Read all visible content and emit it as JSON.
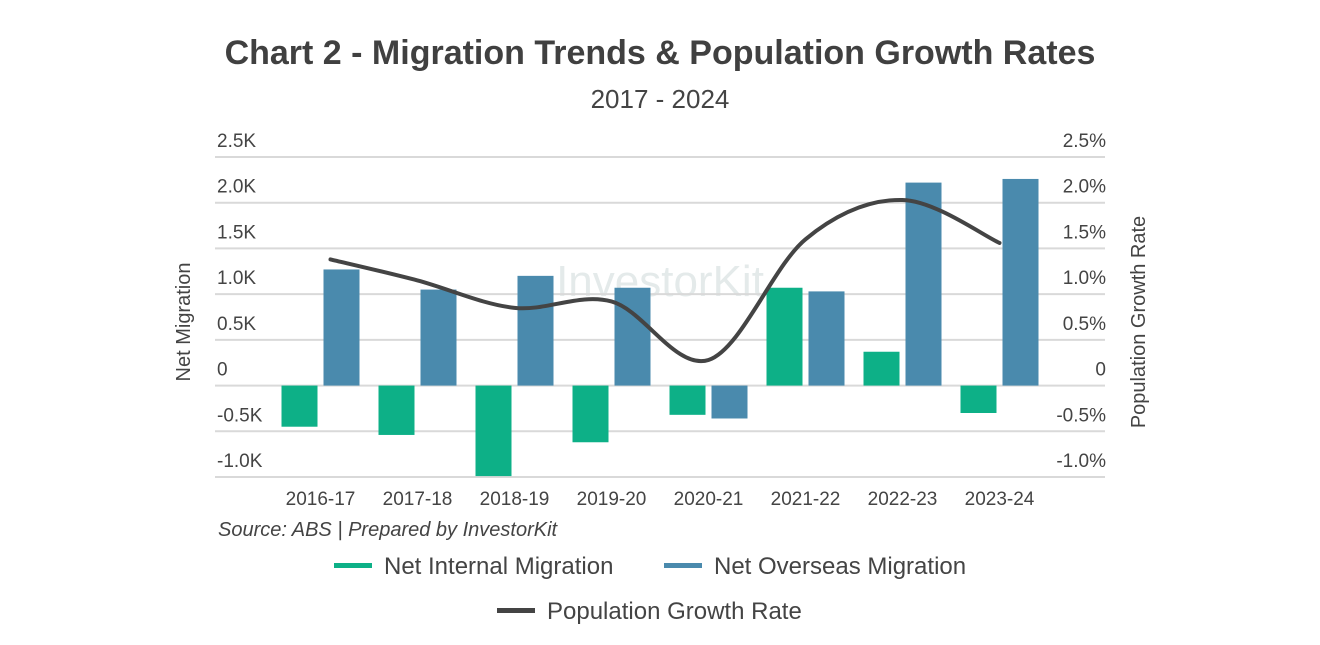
{
  "chart_data": {
    "type": "bar",
    "title": "Chart 2 - Migration Trends & Population Growth Rates",
    "subtitle": "2017 - 2024",
    "source": "Source: ABS | Prepared by InvestorKit",
    "watermark": "InvestorKit",
    "categories": [
      "2016-17",
      "2017-18",
      "2018-19",
      "2019-20",
      "2020-21",
      "2021-22",
      "2022-23",
      "2023-24"
    ],
    "ylabel": "Net Migration",
    "y2label": "Population Growth Rate",
    "ylim": [
      -1000,
      2500
    ],
    "y2lim": [
      -1.0,
      2.5
    ],
    "yticks": [
      "-1.0K",
      "-0.5K",
      "0",
      "0.5K",
      "1.0K",
      "1.5K",
      "2.0K",
      "2.5K"
    ],
    "y2ticks": [
      "-1.0%",
      "-0.5%",
      "0",
      "0.5%",
      "1.0%",
      "1.5%",
      "2.0%",
      "2.5%"
    ],
    "grid": true,
    "legend_position": "bottom",
    "series": [
      {
        "name": "Net Internal Migration",
        "type": "bar",
        "color": "#0db087",
        "values": [
          -450,
          -540,
          -990,
          -620,
          -320,
          1070,
          370,
          -300
        ]
      },
      {
        "name": "Net Overseas Migration",
        "type": "bar",
        "color": "#4a8aad",
        "values": [
          1270,
          1050,
          1200,
          1070,
          -360,
          1030,
          2220,
          2260
        ]
      },
      {
        "name": "Population Growth Rate",
        "type": "line",
        "axis": "right",
        "color": "#444444",
        "values": [
          1.38,
          1.15,
          0.85,
          0.92,
          0.28,
          1.6,
          2.03,
          1.56
        ]
      }
    ]
  }
}
